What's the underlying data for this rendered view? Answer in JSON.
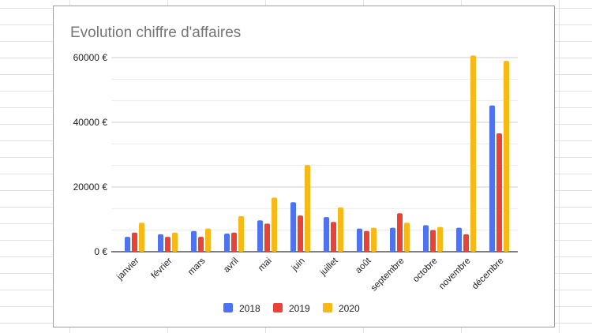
{
  "chart_data": {
    "type": "bar",
    "title": "Evolution chiffre d'affaires",
    "categories": [
      "janvier",
      "février",
      "mars",
      "avril",
      "mai",
      "juin",
      "juillet",
      "août",
      "septembre",
      "octobre",
      "novembre",
      "décembre"
    ],
    "series": [
      {
        "name": "2018",
        "color": "#4f72f0",
        "values": [
          4600,
          5400,
          6400,
          5600,
          9700,
          15300,
          10700,
          7150,
          7400,
          8200,
          7400,
          45200
        ]
      },
      {
        "name": "2019",
        "color": "#e8433a",
        "values": [
          5900,
          4600,
          4600,
          5900,
          8700,
          11200,
          9200,
          6400,
          11900,
          6700,
          5400,
          36600
        ]
      },
      {
        "name": "2020",
        "color": "#f6b916",
        "values": [
          8950,
          5900,
          7150,
          11000,
          16750,
          26800,
          13700,
          7400,
          8950,
          7650,
          60650,
          59000
        ]
      }
    ],
    "y_ticks": [
      "0 €",
      "20000 €",
      "40000 €",
      "60000 €"
    ],
    "ylim": [
      0,
      60000
    ],
    "grid": true,
    "legend": "bottom"
  }
}
